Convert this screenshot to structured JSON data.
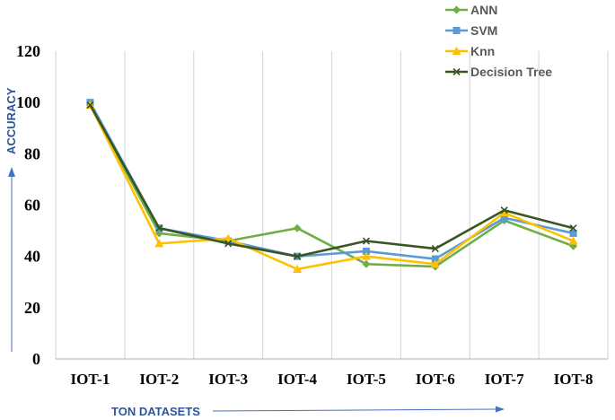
{
  "chart_data": {
    "type": "line",
    "title": "",
    "xlabel": "TON DATASETS",
    "ylabel": "ACCURACY",
    "ylim": [
      0,
      120
    ],
    "yticks": [
      0,
      20,
      40,
      60,
      80,
      100,
      120
    ],
    "grid": "vertical",
    "legend_position": "top-right",
    "categories": [
      "IOT-1",
      "IOT-2",
      "IOT-3",
      "IOT-4",
      "IOT-5",
      "IOT-6",
      "IOT-7",
      "IOT-8"
    ],
    "series": [
      {
        "name": "ANN",
        "marker": "diamond",
        "color": "#70AD47",
        "values": [
          99,
          49,
          46,
          51,
          37,
          36,
          54,
          44
        ]
      },
      {
        "name": "SVM",
        "marker": "square",
        "color": "#5B9BD5",
        "values": [
          100,
          51,
          46,
          40,
          42,
          39,
          55,
          49
        ]
      },
      {
        "name": "Knn",
        "marker": "triangle",
        "color": "#FFC000",
        "values": [
          99,
          45,
          47,
          35,
          40,
          37,
          57,
          46
        ]
      },
      {
        "name": "Decision Tree",
        "marker": "x",
        "color": "#375623",
        "values": [
          99,
          51,
          45,
          40,
          46,
          43,
          58,
          51
        ]
      }
    ],
    "axis_title_color": "#2F5597"
  }
}
